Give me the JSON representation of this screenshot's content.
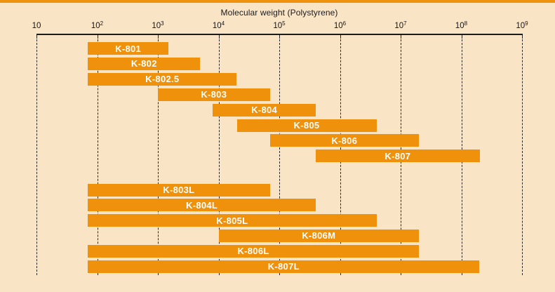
{
  "accent_color": "#F0910C",
  "background_color": "#FAE4C6",
  "chart_data": {
    "type": "bar",
    "subtype": "horizontal-log-range-bars",
    "title": "Molecular weight (Polystyrene)",
    "xlabel": "Molecular weight (Polystyrene)",
    "ylabel": "",
    "x_axis": {
      "scale": "log10",
      "min": 10,
      "max": 1000000000,
      "grid": "dashed-vertical",
      "ticks": [
        {
          "base": "10",
          "sup": ""
        },
        {
          "base": "10",
          "sup": "2"
        },
        {
          "base": "10",
          "sup": "3"
        },
        {
          "base": "10",
          "sup": "4"
        },
        {
          "base": "10",
          "sup": "5"
        },
        {
          "base": "10",
          "sup": "6"
        },
        {
          "base": "10",
          "sup": "7"
        },
        {
          "base": "10",
          "sup": "8"
        },
        {
          "base": "10",
          "sup": "9"
        }
      ]
    },
    "legend": null,
    "bar_groups": [
      [
        {
          "label": "K-801",
          "mw_min": 70,
          "mw_max": 1500
        },
        {
          "label": "K-802",
          "mw_min": 70,
          "mw_max": 5000
        },
        {
          "label": "K-802.5",
          "mw_min": 70,
          "mw_max": 20000
        },
        {
          "label": "K-803",
          "mw_min": 1000,
          "mw_max": 70000
        },
        {
          "label": "K-804",
          "mw_min": 8000,
          "mw_max": 400000
        },
        {
          "label": "K-805",
          "mw_min": 20000,
          "mw_max": 4000000
        },
        {
          "label": "K-806",
          "mw_min": 70000,
          "mw_max": 20000000
        },
        {
          "label": "K-807",
          "mw_min": 400000,
          "mw_max": 200000000
        }
      ],
      [
        {
          "label": "K-803L",
          "mw_min": 70,
          "mw_max": 70000
        },
        {
          "label": "K-804L",
          "mw_min": 70,
          "mw_max": 400000
        },
        {
          "label": "K-805L",
          "mw_min": 70,
          "mw_max": 4000000
        },
        {
          "label": "K-806M",
          "mw_min": 10000,
          "mw_max": 20000000
        },
        {
          "label": "K-806L",
          "mw_min": 70,
          "mw_max": 20000000
        },
        {
          "label": "K-807L",
          "mw_min": 70,
          "mw_max": 200000000
        }
      ]
    ],
    "colors": {
      "bar": "#F0910C",
      "bar_label": "#FFFFFF",
      "axis": "#1B1B1B",
      "background": "#FAE4C6",
      "accent_strip": "#F0910C"
    }
  }
}
